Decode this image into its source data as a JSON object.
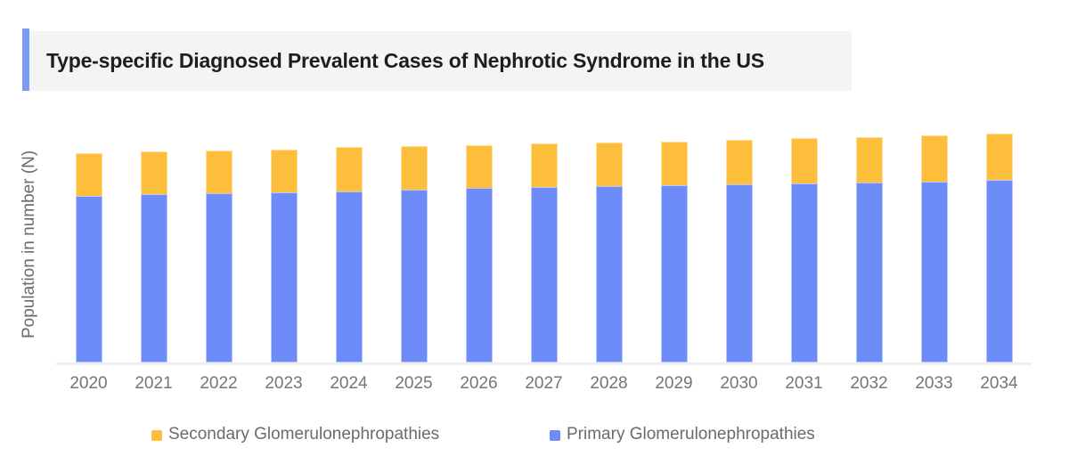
{
  "header": {
    "title": "Type-specific Diagnosed Prevalent Cases of Nephrotic Syndrome in the US",
    "accent_color": "#7D9BF5",
    "background_color": "#F4F4F4",
    "text_color": "#1E1E1E"
  },
  "chart_data": {
    "type": "bar",
    "stacked": true,
    "title": "Type-specific Diagnosed Prevalent Cases of Nephrotic Syndrome in the US",
    "xlabel": "",
    "ylabel": "Population in number (N)",
    "categories": [
      "2020",
      "2021",
      "2022",
      "2023",
      "2024",
      "2025",
      "2026",
      "2027",
      "2028",
      "2029",
      "2030",
      "2031",
      "2032",
      "2033",
      "2034"
    ],
    "series": [
      {
        "name": "Primary Glomerulonephropathies",
        "color": "#6E8CF8",
        "values": [
          187,
          189,
          190,
          191,
          192,
          194,
          196,
          197,
          198,
          199,
          200,
          201,
          202,
          203,
          205
        ]
      },
      {
        "name": "Secondary Glomerulonephropathies",
        "color": "#FDBE3B",
        "values": [
          48,
          48,
          48,
          48,
          50,
          49,
          48,
          49,
          49,
          49,
          50,
          51,
          51,
          52,
          52
        ]
      }
    ],
    "value_units": "relative height (y-axis has no numeric tick labels; values estimated from bar heights)",
    "ylim": [
      0,
      265
    ],
    "grid": false,
    "axis_line_color": "#EFEFEF",
    "tick_label_color": "#757575",
    "ylabel_color": "#6B6B6B",
    "legend_position": "bottom"
  },
  "legend": {
    "text_color": "#6B6B6B",
    "items": [
      {
        "label": "Secondary Glomerulonephropathies",
        "color": "#FDBE3B"
      },
      {
        "label": "Primary Glomerulonephropathies",
        "color": "#6E8CF8"
      }
    ]
  }
}
